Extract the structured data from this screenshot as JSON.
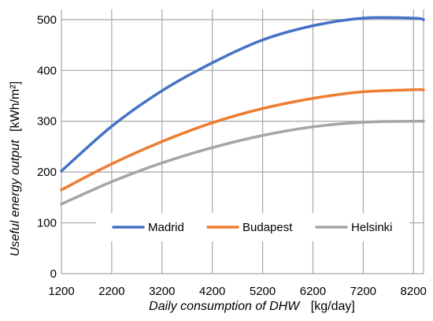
{
  "chart_data": {
    "type": "line",
    "title": "",
    "xlabel_main": "Daily consumption of DHW",
    "xlabel_unit": "[kg/day]",
    "ylabel_main": "Useful energy output",
    "ylabel_unit": "[kWh/m²]",
    "xlim": [
      1200,
      8400
    ],
    "ylim": [
      0,
      520
    ],
    "x_ticks": [
      1200,
      2200,
      3200,
      4200,
      5200,
      6200,
      7200,
      8200
    ],
    "y_ticks": [
      0,
      100,
      200,
      300,
      400,
      500
    ],
    "x_tick_labels": [
      "1200",
      "2200",
      "3200",
      "4200",
      "5200",
      "6200",
      "7200",
      "8200"
    ],
    "y_tick_labels": [
      "0",
      "100",
      "200",
      "300",
      "400",
      "500"
    ],
    "grid": true,
    "legend_position": "bottom-inside",
    "x": [
      1200,
      2200,
      3200,
      4200,
      5200,
      6200,
      7200,
      8200,
      8400
    ],
    "series": [
      {
        "name": "Madrid",
        "color": "#4472C4",
        "values": [
          202,
          290,
          360,
          415,
          460,
          488,
          503,
          503,
          500
        ]
      },
      {
        "name": "Budapest",
        "color": "#ED7D31",
        "values": [
          165,
          216,
          260,
          297,
          325,
          345,
          358,
          362,
          362
        ]
      },
      {
        "name": "Helsinki",
        "color": "#A5A5A5",
        "values": [
          137,
          181,
          218,
          248,
          272,
          289,
          298,
          300,
          300
        ]
      }
    ]
  }
}
